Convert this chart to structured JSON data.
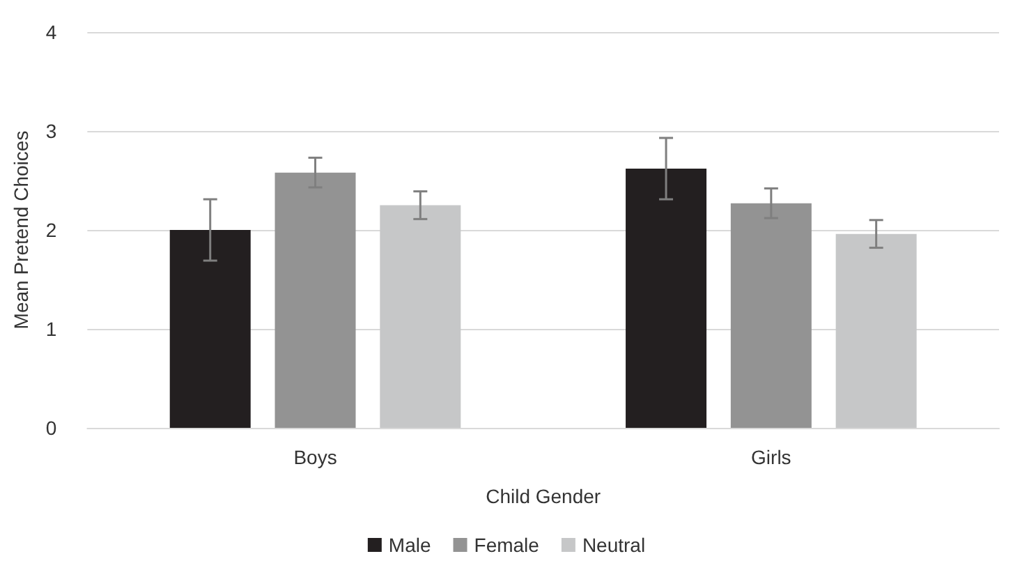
{
  "chart_data": {
    "type": "bar",
    "xlabel": "Child Gender",
    "ylabel": "Mean Pretend Choices",
    "categories": [
      "Boys",
      "Girls"
    ],
    "series": [
      {
        "name": "Male",
        "color": "#231f20",
        "values": [
          2.0,
          2.62
        ],
        "errors": [
          0.31,
          0.31
        ]
      },
      {
        "name": "Female",
        "color": "#939393",
        "values": [
          2.58,
          2.27
        ],
        "errors": [
          0.15,
          0.15
        ]
      },
      {
        "name": "Neutral",
        "color": "#c6c7c8",
        "values": [
          2.25,
          1.96
        ],
        "errors": [
          0.14,
          0.14
        ]
      }
    ],
    "ylim": [
      0,
      4
    ],
    "yticks": [
      0,
      1,
      2,
      3,
      4
    ],
    "grid": "y",
    "legend": "bottom"
  }
}
